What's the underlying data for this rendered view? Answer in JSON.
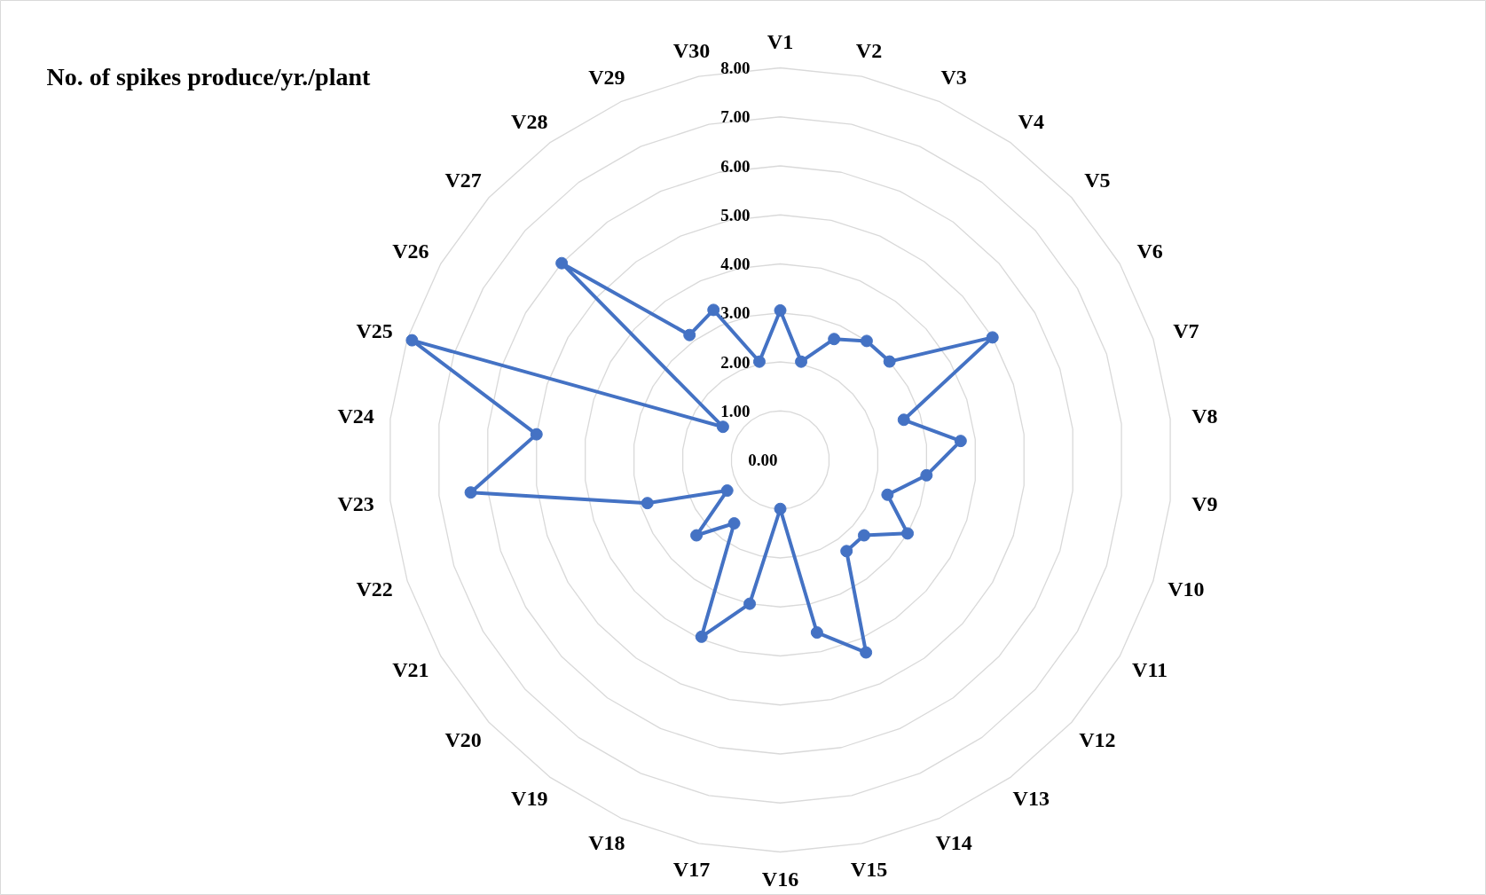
{
  "chart_data": {
    "type": "radar",
    "title": "No. of spikes produce/yr./plant",
    "categories": [
      "V1",
      "V2",
      "V3",
      "V4",
      "V5",
      "V6",
      "V7",
      "V8",
      "V9",
      "V10",
      "V11",
      "V12",
      "V13",
      "V14",
      "V15",
      "V16",
      "V17",
      "V18",
      "V19",
      "V20",
      "V21",
      "V22",
      "V23",
      "V24",
      "V25",
      "V26",
      "V27",
      "V28",
      "V29",
      "V30"
    ],
    "series": [
      {
        "color": "#4472c4",
        "values": [
          3.05,
          2.05,
          2.7,
          3.0,
          3.0,
          5.0,
          2.65,
          3.7,
          3.0,
          2.3,
          3.0,
          2.3,
          2.3,
          4.3,
          3.6,
          1.0,
          3.0,
          3.95,
          1.6,
          2.3,
          1.25,
          2.85,
          6.35,
          5.0,
          7.9,
          1.35,
          6.0,
          3.15,
          3.35,
          2.05
        ]
      }
    ],
    "ylim": [
      0,
      8
    ],
    "yticks": [
      {
        "value": 0,
        "label": "0.00"
      },
      {
        "value": 1,
        "label": "1.00"
      },
      {
        "value": 2,
        "label": "2.00"
      },
      {
        "value": 3,
        "label": "3.00"
      },
      {
        "value": 4,
        "label": "4.00"
      },
      {
        "value": 5,
        "label": "5.00"
      },
      {
        "value": 6,
        "label": "6.00"
      },
      {
        "value": 7,
        "label": "7.00"
      },
      {
        "value": 8,
        "label": "8.00"
      }
    ],
    "grid": true,
    "marker": "circle",
    "line_style": "solid"
  }
}
